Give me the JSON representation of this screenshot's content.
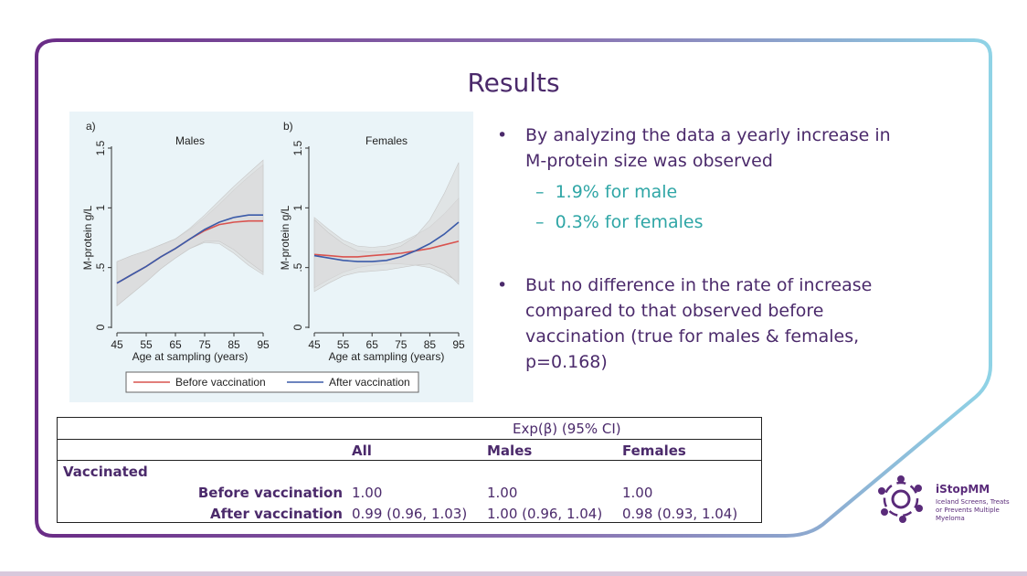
{
  "slide": {
    "title": "Results",
    "bullets": [
      {
        "text": "By analyzing the data a yearly increase in M-protein size was observed",
        "subitems": [
          "1.9% for male",
          "0.3% for females"
        ]
      },
      {
        "text": "But no difference in the rate of increase compared to that observed before vaccination (true for males & females, p=0.168)",
        "subitems": []
      }
    ],
    "bullet_glyph": "•",
    "sub_glyph": "–"
  },
  "table": {
    "header": "Exp(β) (95% CI)",
    "columns": [
      "All",
      "Males",
      "Females"
    ],
    "group_label": "Vaccinated",
    "rows": [
      {
        "label": "Before vaccination",
        "values": [
          "1.00",
          "1.00",
          "1.00"
        ]
      },
      {
        "label": "After vaccination",
        "values": [
          "0.99 (0.96, 1.03)",
          "1.00 (0.96, 1.04)",
          "0.98 (0.93, 1.04)"
        ]
      }
    ]
  },
  "logo": {
    "name": "iStopMM",
    "tagline": "Iceland Screens, Treats or Prevents Multiple Myeloma",
    "icon": "people-circle-icon"
  },
  "colors": {
    "title": "#4b2a6b",
    "subitem": "#2fa6a6",
    "before_line": "#d9534f",
    "after_line": "#3b5ba9",
    "ci_band": "#d9d9d9",
    "figure_bg": "#eaf4f8"
  },
  "chart_data": [
    {
      "type": "line",
      "panel_label": "a)",
      "title": "Males",
      "xlabel": "Age at sampling (years)",
      "ylabel": "M-protein g/L",
      "x_ticks": [
        45,
        55,
        65,
        75,
        85,
        95
      ],
      "y_ticks": [
        0,
        0.5,
        1,
        1.5
      ],
      "y_tick_labels": [
        "0",
        ".5",
        "1",
        "1.5"
      ],
      "xlim": [
        45,
        95
      ],
      "ylim": [
        0,
        1.5
      ],
      "grid": false,
      "x": [
        45,
        50,
        55,
        60,
        65,
        70,
        75,
        80,
        85,
        90,
        95
      ],
      "series": [
        {
          "name": "Before vaccination",
          "values": [
            0.37,
            0.44,
            0.51,
            0.59,
            0.66,
            0.74,
            0.81,
            0.86,
            0.88,
            0.89,
            0.89
          ],
          "ci_lower": [
            0.18,
            0.28,
            0.38,
            0.49,
            0.58,
            0.66,
            0.71,
            0.7,
            0.62,
            0.52,
            0.44
          ],
          "ci_upper": [
            0.55,
            0.6,
            0.64,
            0.69,
            0.74,
            0.82,
            0.92,
            1.03,
            1.15,
            1.26,
            1.36
          ]
        },
        {
          "name": "After vaccination",
          "values": [
            0.37,
            0.44,
            0.51,
            0.59,
            0.66,
            0.74,
            0.82,
            0.88,
            0.92,
            0.94,
            0.94
          ],
          "ci_lower": [
            0.18,
            0.28,
            0.38,
            0.49,
            0.58,
            0.66,
            0.72,
            0.72,
            0.65,
            0.55,
            0.46
          ],
          "ci_upper": [
            0.55,
            0.6,
            0.64,
            0.69,
            0.74,
            0.83,
            0.94,
            1.06,
            1.18,
            1.29,
            1.4
          ]
        }
      ]
    },
    {
      "type": "line",
      "panel_label": "b)",
      "title": "Females",
      "xlabel": "Age at sampling (years)",
      "ylabel": "M-protein g/L",
      "x_ticks": [
        45,
        55,
        65,
        75,
        85,
        95
      ],
      "y_ticks": [
        0,
        0.5,
        1,
        1.5
      ],
      "y_tick_labels": [
        "0",
        ".5",
        "1",
        "1.5"
      ],
      "xlim": [
        45,
        95
      ],
      "ylim": [
        0,
        1.5
      ],
      "grid": false,
      "x": [
        45,
        50,
        55,
        60,
        65,
        70,
        75,
        80,
        85,
        90,
        95
      ],
      "series": [
        {
          "name": "Before vaccination",
          "values": [
            0.61,
            0.6,
            0.59,
            0.59,
            0.6,
            0.61,
            0.62,
            0.64,
            0.66,
            0.69,
            0.72
          ],
          "ci_lower": [
            0.33,
            0.4,
            0.46,
            0.5,
            0.52,
            0.53,
            0.53,
            0.52,
            0.5,
            0.45,
            0.38
          ],
          "ci_upper": [
            0.92,
            0.82,
            0.73,
            0.68,
            0.67,
            0.68,
            0.71,
            0.77,
            0.84,
            0.95,
            1.08
          ]
        },
        {
          "name": "After vaccination",
          "values": [
            0.6,
            0.58,
            0.56,
            0.55,
            0.55,
            0.56,
            0.59,
            0.64,
            0.7,
            0.78,
            0.88
          ],
          "ci_lower": [
            0.3,
            0.37,
            0.43,
            0.46,
            0.47,
            0.48,
            0.5,
            0.52,
            0.53,
            0.48,
            0.36
          ],
          "ci_upper": [
            0.9,
            0.79,
            0.7,
            0.64,
            0.63,
            0.64,
            0.68,
            0.76,
            0.9,
            1.12,
            1.38
          ]
        }
      ]
    }
  ]
}
